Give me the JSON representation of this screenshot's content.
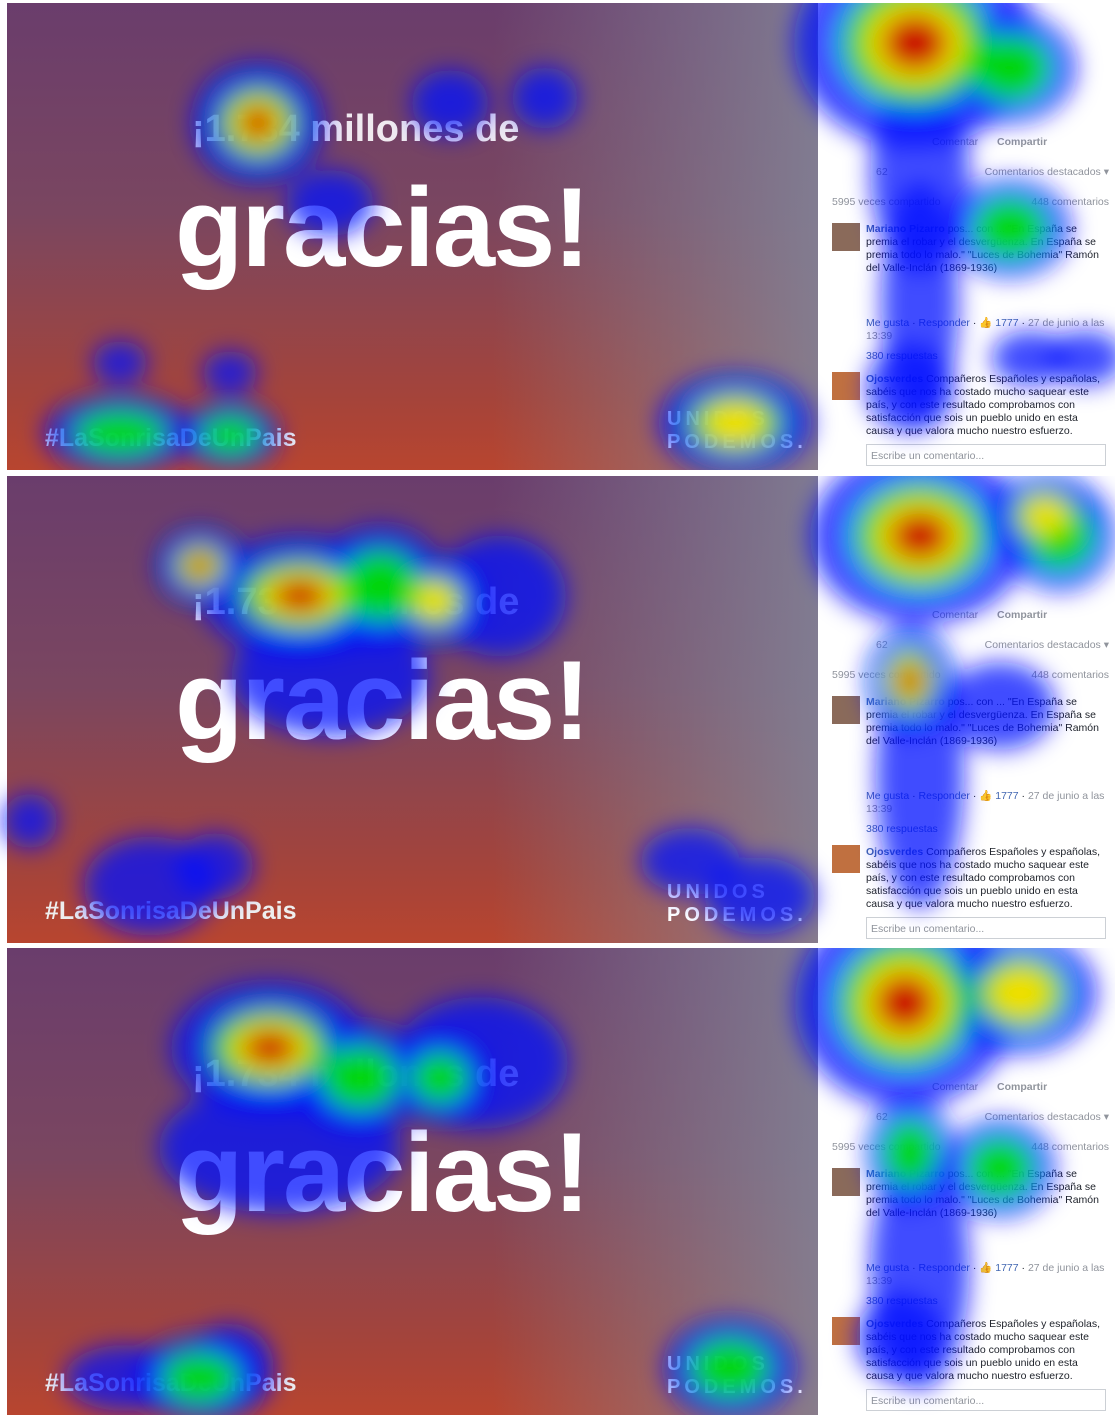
{
  "panels": [
    {
      "video": {
        "headline": "¡1.734 millones de",
        "big": "gracias!",
        "hashtag": "#LaSonrisaDeUnPais",
        "logo_top": "UNIDOS",
        "logo_bottom": "PODEMOS."
      },
      "sidebar": {
        "comment_action": "Comentar",
        "share_action": "Compartir",
        "reactions": "62",
        "sort": "Comentarios destacados ▾",
        "shares": "5995 veces compartido",
        "comments": "448 comentarios",
        "comment1": {
          "author": "Mariano Pizarro",
          "text": "pos... con ... \"En España se premia el robar y el desvergüenza. En España se premia todo lo malo.\" \"Luces de Bohemia\" Ramón del Valle-Inclán (1869-1936)",
          "like": "Me gusta",
          "reply": "Responder",
          "likes": "1777",
          "date": "27 de junio a las 13:39",
          "replies": "380 respuestas"
        },
        "comment2": {
          "author": "Ojosverdes",
          "text": "Compañeros Españoles y españolas, sabéis que nos ha costado mucho saquear este país, y con este resultado comprobamos con satisfacción que sois un pueblo unido en esta causa y que valora mucho nuestro esfuerzo."
        },
        "input": "Escribe un comentario..."
      }
    },
    {
      "video": {
        "headline": "¡1.734 millones de",
        "big": "gracias!",
        "hashtag": "#LaSonrisaDeUnPais",
        "logo_top": "UNIDOS",
        "logo_bottom": "PODEMOS."
      },
      "sidebar": {
        "comment_action": "Comentar",
        "share_action": "Compartir",
        "reactions": "62",
        "sort": "Comentarios destacados ▾",
        "shares": "5995 veces compartido",
        "comments": "448 comentarios",
        "comment1": {
          "author": "Mariano Pizarro",
          "text": "pos... con ... \"En España se premia el robar y el desvergüenza. En España se premia todo lo malo.\" \"Luces de Bohemia\" Ramón del Valle-Inclán (1869-1936)",
          "like": "Me gusta",
          "reply": "Responder",
          "likes": "1777",
          "date": "27 de junio a las 13:39",
          "replies": "380 respuestas"
        },
        "comment2": {
          "author": "Ojosverdes",
          "text": "Compañeros Españoles y españolas, sabéis que nos ha costado mucho saquear este país, y con este resultado comprobamos con satisfacción que sois un pueblo unido en esta causa y que valora mucho nuestro esfuerzo."
        },
        "input": "Escribe un comentario..."
      }
    },
    {
      "video": {
        "headline": "¡1.734 millones de",
        "big": "gracias!",
        "hashtag": "#LaSonrisaDeUnPais",
        "logo_top": "UNIDOS",
        "logo_bottom": "PODEMOS."
      },
      "sidebar": {
        "comment_action": "Comentar",
        "share_action": "Compartir",
        "reactions": "62",
        "sort": "Comentarios destacados ▾",
        "shares": "5995 veces compartido",
        "comments": "448 comentarios",
        "comment1": {
          "author": "Mariano Pizarro",
          "text": "pos... con ... \"En España se premia el robar y el desvergüenza. En España se premia todo lo malo.\" \"Luces de Bohemia\" Ramón del Valle-Inclán (1869-1936)",
          "like": "Me gusta",
          "reply": "Responder",
          "likes": "1777",
          "date": "27 de junio a las 13:39",
          "replies": "380 respuestas"
        },
        "comment2": {
          "author": "Ojosverdes",
          "text": "Compañeros Españoles y españolas, sabéis que nos ha costado mucho saquear este país, y con este resultado comprobamos con satisfacción que sois un pueblo unido en esta causa y que valora mucho nuestro esfuerzo."
        },
        "input": "Escribe un comentario..."
      }
    }
  ]
}
